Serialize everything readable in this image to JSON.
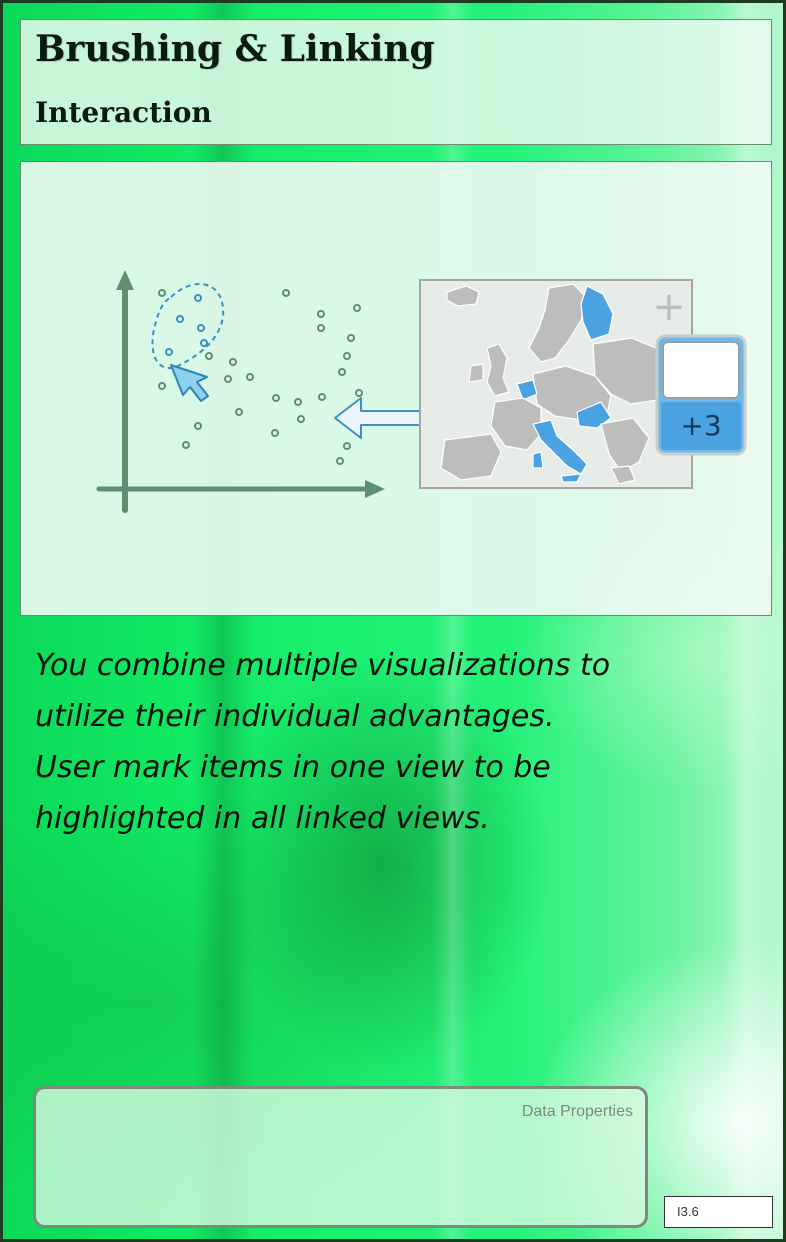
{
  "card": {
    "title": "Brushing & Linking",
    "subtitle": "Interaction",
    "description_lines": [
      "You combine multiple visualizations to",
      "utilize their individual advantages.",
      "User mark items in one view to be",
      "highlighted in all linked views."
    ],
    "data_properties_label": "Data Properties",
    "card_code": "I3.6"
  },
  "illustration": {
    "counter_label": "+3",
    "map_plus_symbol": "+"
  },
  "colors": {
    "highlight_blue": "#4aa3e0",
    "axis_green": "#5f8f6e",
    "map_grey": "#bdbdbd"
  }
}
